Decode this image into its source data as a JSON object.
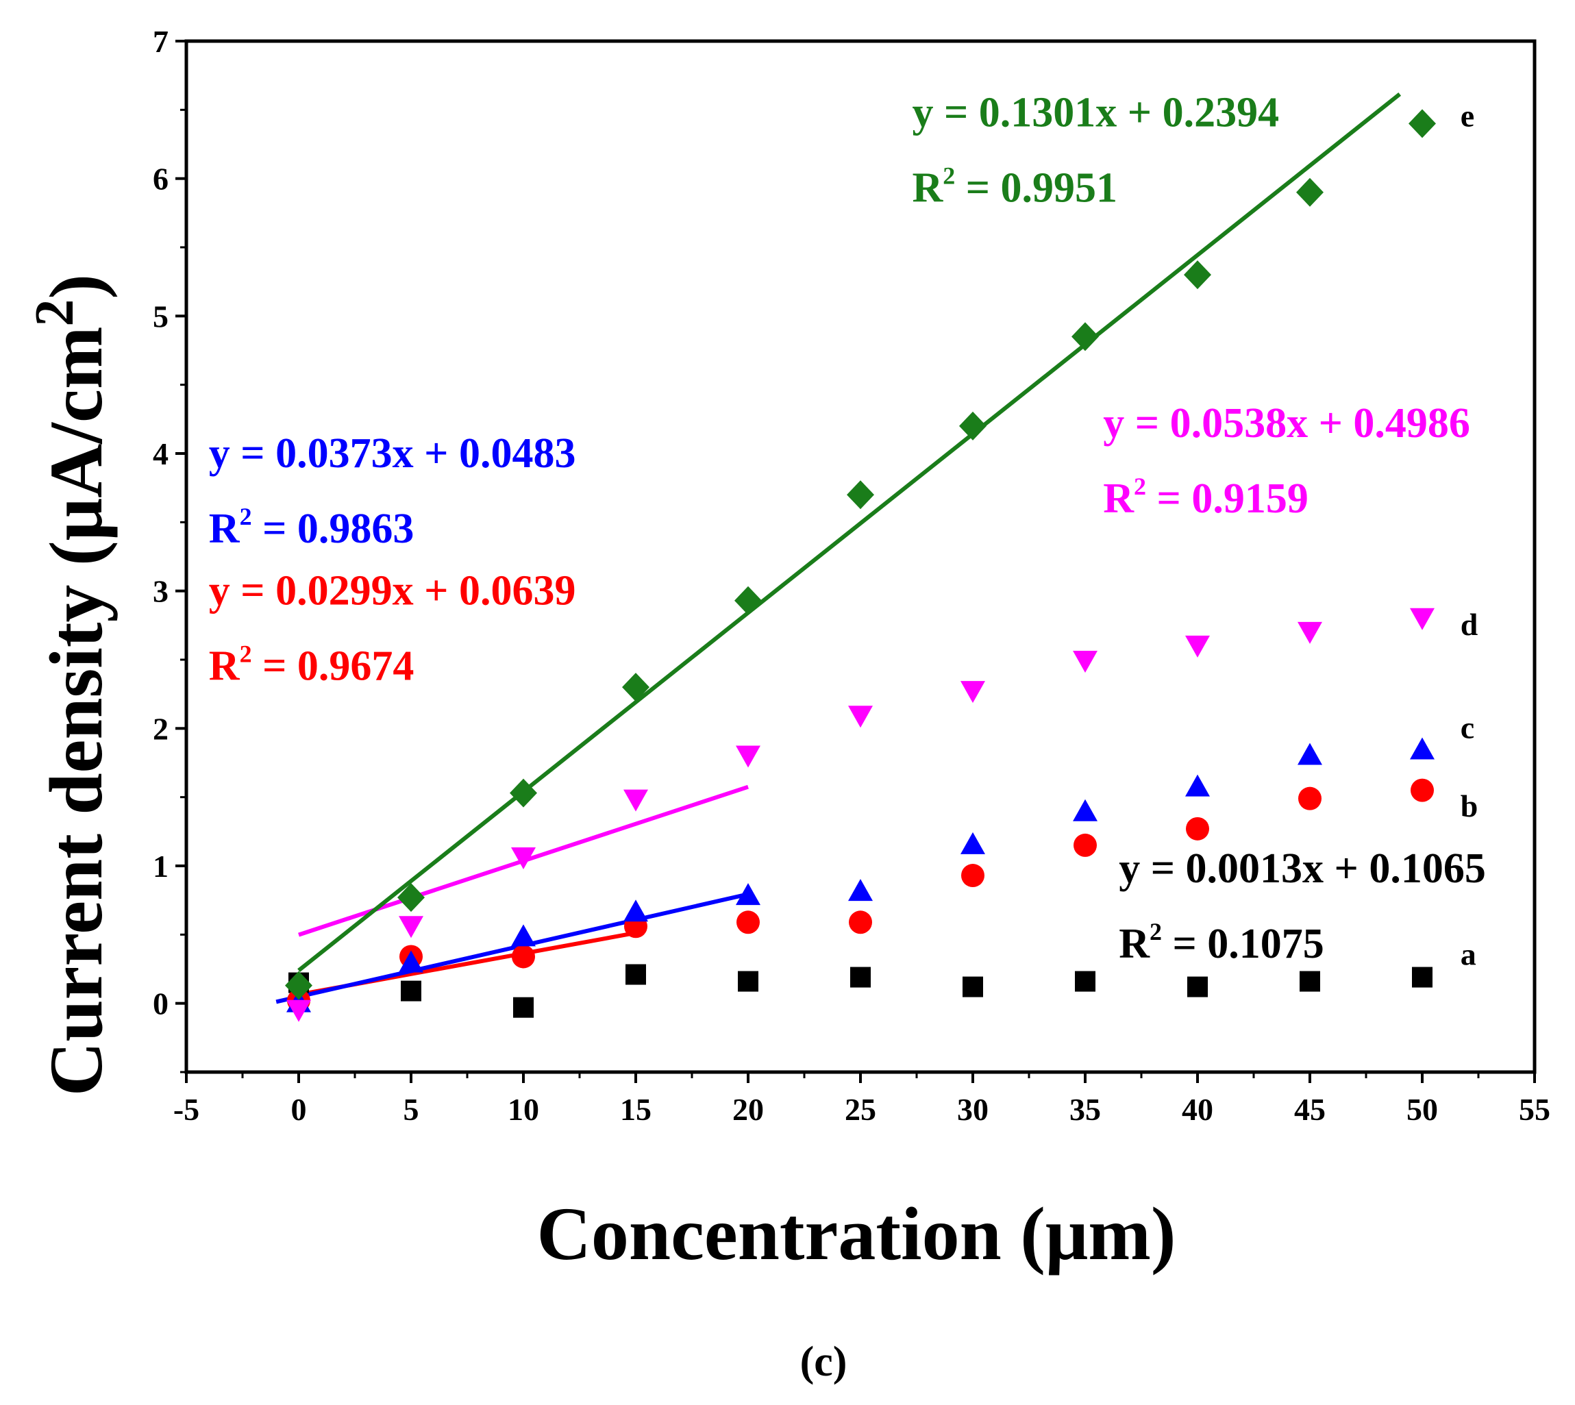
{
  "chart_data": {
    "type": "scatter",
    "title": "",
    "xlabel": "Concentration (μm)",
    "ylabel_main": "Current density (μA/cm",
    "ylabel_sup": "2",
    "ylabel_close": ")",
    "xlim": [
      -5,
      55
    ],
    "ylim": [
      -0.5,
      7
    ],
    "xticks": [
      -5,
      0,
      5,
      10,
      15,
      20,
      25,
      30,
      35,
      40,
      45,
      50,
      55
    ],
    "yticks": [
      0,
      1,
      2,
      3,
      4,
      5,
      6,
      7
    ],
    "grid": false,
    "panel_label": "(c)",
    "series": [
      {
        "name": "a",
        "color": "#000000",
        "marker": "square",
        "x": [
          0,
          5,
          10,
          15,
          20,
          25,
          30,
          35,
          40,
          45,
          50
        ],
        "y": [
          0.15,
          0.09,
          -0.03,
          0.21,
          0.16,
          0.19,
          0.12,
          0.16,
          0.12,
          0.16,
          0.19
        ],
        "label_pos": [
          51.7,
          0.28
        ],
        "fit": null,
        "equation": {
          "eq": "y = 0.0013x + 0.1065",
          "r2_prefix": "R",
          "r2_sup": "2",
          "r2_value": " = 0.1075",
          "pos": [
            36.5,
            0.88
          ]
        }
      },
      {
        "name": "b",
        "color": "#ff0000",
        "marker": "circle",
        "x": [
          0,
          5,
          10,
          15,
          20,
          25,
          30,
          35,
          40,
          45,
          50
        ],
        "y": [
          0.02,
          0.34,
          0.34,
          0.56,
          0.59,
          0.59,
          0.93,
          1.15,
          1.27,
          1.49,
          1.55
        ],
        "label_pos": [
          51.7,
          1.36
        ],
        "fit": {
          "slope": 0.0299,
          "intercept": 0.0639,
          "x_range": [
            0,
            15
          ]
        },
        "equation": {
          "eq": "y = 0.0299x + 0.0639",
          "r2_prefix": "R",
          "r2_sup": "2",
          "r2_value": " = 0.9674",
          "pos": [
            -4.0,
            2.9
          ]
        }
      },
      {
        "name": "c",
        "color": "#0000ff",
        "marker": "triangle-up",
        "x": [
          0,
          5,
          10,
          15,
          20,
          25,
          30,
          35,
          40,
          45,
          50
        ],
        "y": [
          0.0,
          0.29,
          0.48,
          0.66,
          0.78,
          0.81,
          1.15,
          1.39,
          1.57,
          1.8,
          1.84
        ],
        "label_pos": [
          51.7,
          1.93
        ],
        "fit": {
          "slope": 0.0373,
          "intercept": 0.0483,
          "x_range": [
            -1,
            20
          ]
        },
        "equation": {
          "eq": "y = 0.0373x + 0.0483",
          "r2_prefix": "R",
          "r2_sup": "2",
          "r2_value": " = 0.9863",
          "pos": [
            -4.0,
            3.9
          ]
        }
      },
      {
        "name": "d",
        "color": "#ff00ff",
        "marker": "triangle-down",
        "x": [
          0,
          5,
          10,
          15,
          20,
          25,
          30,
          35,
          40,
          45,
          50
        ],
        "y": [
          -0.04,
          0.57,
          1.07,
          1.49,
          1.81,
          2.1,
          2.28,
          2.5,
          2.61,
          2.71,
          2.81
        ],
        "label_pos": [
          51.7,
          2.68
        ],
        "fit": {
          "slope": 0.0538,
          "intercept": 0.4986,
          "x_range": [
            0,
            20
          ]
        },
        "equation": {
          "eq": "y = 0.0538x + 0.4986",
          "r2_prefix": "R",
          "r2_sup": "2",
          "r2_value": " = 0.9159",
          "pos": [
            35.8,
            4.12
          ]
        }
      },
      {
        "name": "e",
        "color": "#1a7d1a",
        "marker": "diamond",
        "x": [
          0,
          5,
          10,
          15,
          20,
          25,
          30,
          35,
          40,
          45,
          50
        ],
        "y": [
          0.13,
          0.77,
          1.53,
          2.3,
          2.93,
          3.7,
          4.2,
          4.85,
          5.3,
          5.9,
          6.4
        ],
        "label_pos": [
          51.7,
          6.38
        ],
        "fit": {
          "slope": 0.1301,
          "intercept": 0.2394,
          "x_range": [
            0,
            49
          ]
        },
        "equation": {
          "eq": "y = 0.1301x + 0.2394",
          "r2_prefix": "R",
          "r2_sup": "2",
          "r2_value": " = 0.9951",
          "pos": [
            27.3,
            6.38
          ]
        }
      }
    ]
  }
}
